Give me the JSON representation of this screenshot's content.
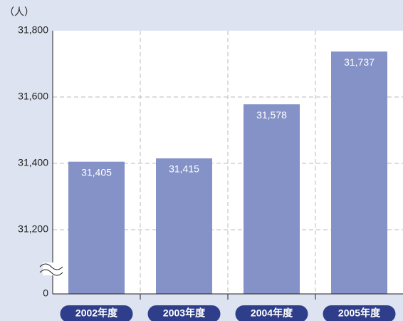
{
  "chart_data": {
    "type": "bar",
    "y_unit": "（人）",
    "categories": [
      "2002年度",
      "2003年度",
      "2004年度",
      "2005年度"
    ],
    "values": [
      31405,
      31415,
      31578,
      31737
    ],
    "value_labels": [
      "31,405",
      "31,415",
      "31,578",
      "31,737"
    ],
    "color": "#8592c8",
    "ylim": [
      0,
      31800
    ],
    "yticks": [
      0,
      {
        "value": 31200,
        "label": "31,200"
      },
      {
        "value": 31400,
        "label": "31,400"
      },
      {
        "value": 31600,
        "label": "31,600"
      },
      {
        "value": 31800,
        "label": "31,800"
      }
    ],
    "axis_break": true,
    "grid": true
  }
}
